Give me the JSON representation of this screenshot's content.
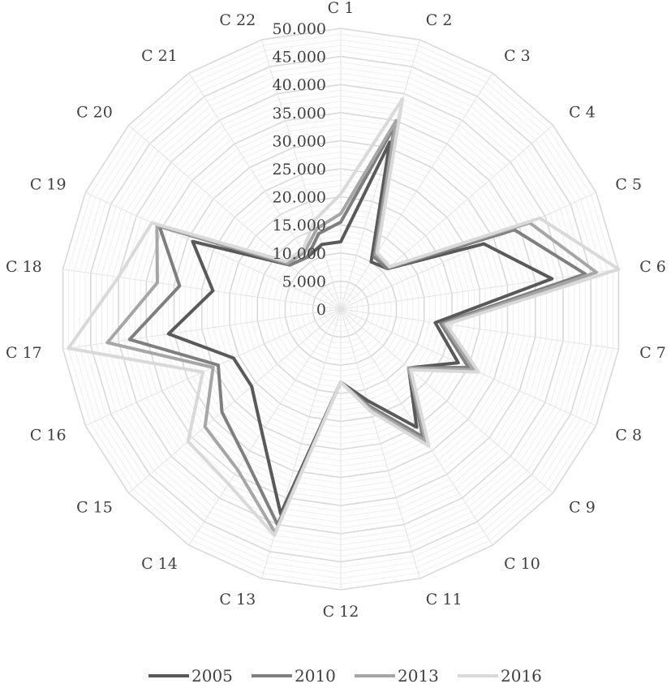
{
  "chart_data": {
    "type": "radar",
    "categories": [
      "C 1",
      "C 2",
      "C 3",
      "C 4",
      "C 5",
      "C 6",
      "C 7",
      "C 8",
      "C 9",
      "C 10",
      "C 11",
      "C 12",
      "C 13",
      "C 14",
      "C 15",
      "C 16",
      "C 17",
      "C 18",
      "C 19",
      "C 20",
      "C 21",
      "C 22"
    ],
    "yticks": [
      "0",
      "5.000",
      "10.000",
      "15.000",
      "20.000",
      "25.000",
      "30.000",
      "35.000",
      "40.000",
      "45.000",
      "50.000"
    ],
    "ylim": [
      0,
      50000
    ],
    "grid": true,
    "legend_position": "bottom",
    "series": [
      {
        "name": "2005",
        "color": "#595959",
        "values": [
          12000,
          31000,
          10000,
          11000,
          28000,
          38000,
          17000,
          23000,
          16000,
          25000,
          17000,
          13000,
          38000,
          26000,
          21000,
          21000,
          31000,
          23000,
          29000,
          12000,
          11000,
          12000
        ]
      },
      {
        "name": "2010",
        "color": "#7f7f7f",
        "values": [
          15500,
          34000,
          11000,
          11000,
          34000,
          44000,
          18000,
          25000,
          16000,
          27000,
          18000,
          13000,
          40000,
          31500,
          28000,
          24000,
          38000,
          29000,
          35500,
          12000,
          11000,
          14000
        ]
      },
      {
        "name": "2013",
        "color": "#a6a6a6",
        "values": [
          17000,
          35000,
          11500,
          11500,
          37000,
          46000,
          18500,
          26000,
          16000,
          28000,
          18500,
          13000,
          41500,
          34000,
          32000,
          25000,
          42000,
          33000,
          36000,
          12500,
          12000,
          15000
        ]
      },
      {
        "name": "2016",
        "color": "#d9d9d9",
        "values": [
          20500,
          39000,
          12000,
          11500,
          39000,
          50000,
          19000,
          27000,
          16500,
          29000,
          19000,
          13000,
          42000,
          37000,
          36000,
          27000,
          49000,
          40000,
          37000,
          13000,
          12500,
          16500
        ]
      }
    ]
  }
}
